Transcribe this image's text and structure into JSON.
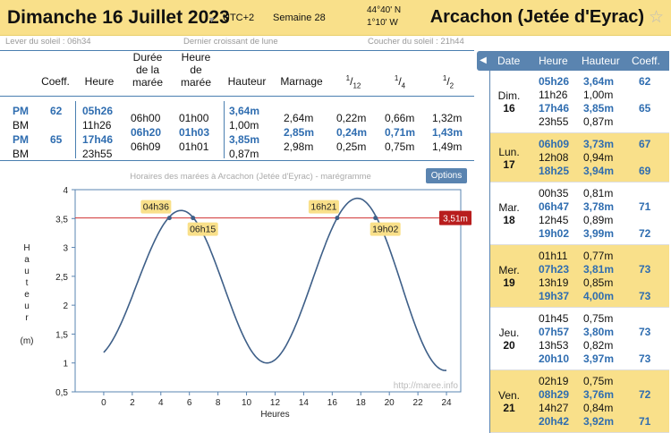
{
  "header": {
    "date_title": "Dimanche 16 Juillet 2023",
    "utc": "UTC+2",
    "week": "Semaine 28",
    "lat": "44°40' N",
    "lon": "1°10' W",
    "station": "Arcachon (Jetée d'Eyrac)"
  },
  "subbar": {
    "sunrise": "Lever du soleil : 06h34",
    "moon": "Dernier croissant de lune",
    "sunset": "Coucher du soleil : 21h44"
  },
  "table": {
    "headers": {
      "coeff": "Coeff.",
      "heure": "Heure",
      "duree1": "Durée",
      "duree2": "de la",
      "duree3": "marée",
      "hmaree1": "Heure",
      "hmaree2": "de",
      "hmaree3": "marée",
      "hauteur": "Hauteur",
      "marnage": "Marnage",
      "f12_num": "1",
      "f12_den": "12",
      "f14_num": "1",
      "f14_den": "4",
      "f12b_num": "1",
      "f12b_den": "2"
    },
    "rows": [
      {
        "type": "PM",
        "coeff": "62",
        "heure": "05h26",
        "hauteur": "3,64m"
      },
      {
        "type": "BM",
        "heure": "11h26",
        "duree": "06h00",
        "hmaree": "01h00",
        "hauteur": "1,00m",
        "marnage": "2,64m",
        "d12": "0,22m",
        "d4": "0,66m",
        "d2": "1,32m"
      },
      {
        "type": "PM",
        "coeff": "65",
        "heure": "17h46",
        "duree": "06h20",
        "hmaree": "01h03",
        "hauteur": "3,85m",
        "marnage": "2,85m",
        "d12": "0,24m",
        "d4": "0,71m",
        "d2": "1,43m"
      },
      {
        "type": "BM",
        "heure": "23h55",
        "duree": "06h09",
        "hmaree": "01h01",
        "hauteur": "0,87m",
        "marnage": "2,98m",
        "d12": "0,25m",
        "d4": "0,75m",
        "d2": "1,49m"
      }
    ]
  },
  "chart": {
    "title": "Horaires des marées à Arcachon (Jetée d'Eyrac) - marégramme",
    "options_label": "Options",
    "watermark": "http://maree.info",
    "ylabel_letters": [
      "H",
      "a",
      "u",
      "t",
      "e",
      "u",
      "r"
    ],
    "ylabel_unit": "(m)",
    "xlabel": "Heures",
    "threshold_label": "3,51m",
    "markers": [
      {
        "label": "04h36",
        "x": 4.6,
        "side": "left"
      },
      {
        "label": "06h15",
        "x": 6.25,
        "side": "right"
      },
      {
        "label": "16h21",
        "x": 16.35,
        "side": "left"
      },
      {
        "label": "19h02",
        "x": 19.03,
        "side": "right"
      }
    ]
  },
  "chart_data": {
    "type": "line",
    "x": [
      0,
      2,
      4,
      5.43,
      7,
      9,
      11.43,
      13,
      15,
      17.77,
      20,
      22,
      23.92,
      24
    ],
    "y": [
      1.18,
      2.0,
      3.2,
      3.64,
      3.2,
      1.9,
      1.0,
      1.6,
      2.9,
      3.85,
      3.1,
      1.7,
      0.87,
      0.87
    ],
    "threshold": 3.51,
    "xlim": [
      -2,
      25
    ],
    "ylim": [
      0.5,
      4
    ],
    "xticks": [
      "0",
      "2",
      "4",
      "6",
      "8",
      "10",
      "12",
      "14",
      "16",
      "18",
      "20",
      "22",
      "24"
    ],
    "yticks": [
      "0,5",
      "1",
      "1,5",
      "2",
      "2,5",
      "3",
      "3,5",
      "4"
    ],
    "xlabel": "Heures",
    "ylabel": "Hauteur (m)",
    "grid": false
  },
  "side": {
    "headers": {
      "date": "Date",
      "heure": "Heure",
      "hauteur": "Hauteur",
      "coeff": "Coeff."
    },
    "tab_icon": "chevron-left-icon",
    "days": [
      {
        "name": "Dim.",
        "num": "16",
        "alt": false,
        "tides": [
          {
            "h": "05h26",
            "v": "3,64m",
            "c": "62",
            "hi": true
          },
          {
            "h": "11h26",
            "v": "1,00m",
            "c": "",
            "hi": false
          },
          {
            "h": "17h46",
            "v": "3,85m",
            "c": "65",
            "hi": true
          },
          {
            "h": "23h55",
            "v": "0,87m",
            "c": "",
            "hi": false
          }
        ]
      },
      {
        "name": "Lun.",
        "num": "17",
        "alt": true,
        "tides": [
          {
            "h": "06h09",
            "v": "3,73m",
            "c": "67",
            "hi": true
          },
          {
            "h": "12h08",
            "v": "0,94m",
            "c": "",
            "hi": false
          },
          {
            "h": "18h25",
            "v": "3,94m",
            "c": "69",
            "hi": true
          }
        ]
      },
      {
        "name": "Mar.",
        "num": "18",
        "alt": false,
        "tides": [
          {
            "h": "00h35",
            "v": "0,81m",
            "c": "",
            "hi": false
          },
          {
            "h": "06h47",
            "v": "3,78m",
            "c": "71",
            "hi": true
          },
          {
            "h": "12h45",
            "v": "0,89m",
            "c": "",
            "hi": false
          },
          {
            "h": "19h02",
            "v": "3,99m",
            "c": "72",
            "hi": true
          }
        ]
      },
      {
        "name": "Mer.",
        "num": "19",
        "alt": true,
        "tides": [
          {
            "h": "01h11",
            "v": "0,77m",
            "c": "",
            "hi": false
          },
          {
            "h": "07h23",
            "v": "3,81m",
            "c": "73",
            "hi": true
          },
          {
            "h": "13h19",
            "v": "0,85m",
            "c": "",
            "hi": false
          },
          {
            "h": "19h37",
            "v": "4,00m",
            "c": "73",
            "hi": true
          }
        ]
      },
      {
        "name": "Jeu.",
        "num": "20",
        "alt": false,
        "tides": [
          {
            "h": "01h45",
            "v": "0,75m",
            "c": "",
            "hi": false
          },
          {
            "h": "07h57",
            "v": "3,80m",
            "c": "73",
            "hi": true
          },
          {
            "h": "13h53",
            "v": "0,82m",
            "c": "",
            "hi": false
          },
          {
            "h": "20h10",
            "v": "3,97m",
            "c": "73",
            "hi": true
          }
        ]
      },
      {
        "name": "Ven.",
        "num": "21",
        "alt": true,
        "tides": [
          {
            "h": "02h19",
            "v": "0,75m",
            "c": "",
            "hi": false
          },
          {
            "h": "08h29",
            "v": "3,76m",
            "c": "72",
            "hi": true
          },
          {
            "h": "14h27",
            "v": "0,84m",
            "c": "",
            "hi": false
          },
          {
            "h": "20h42",
            "v": "3,92m",
            "c": "71",
            "hi": true
          }
        ]
      }
    ]
  }
}
